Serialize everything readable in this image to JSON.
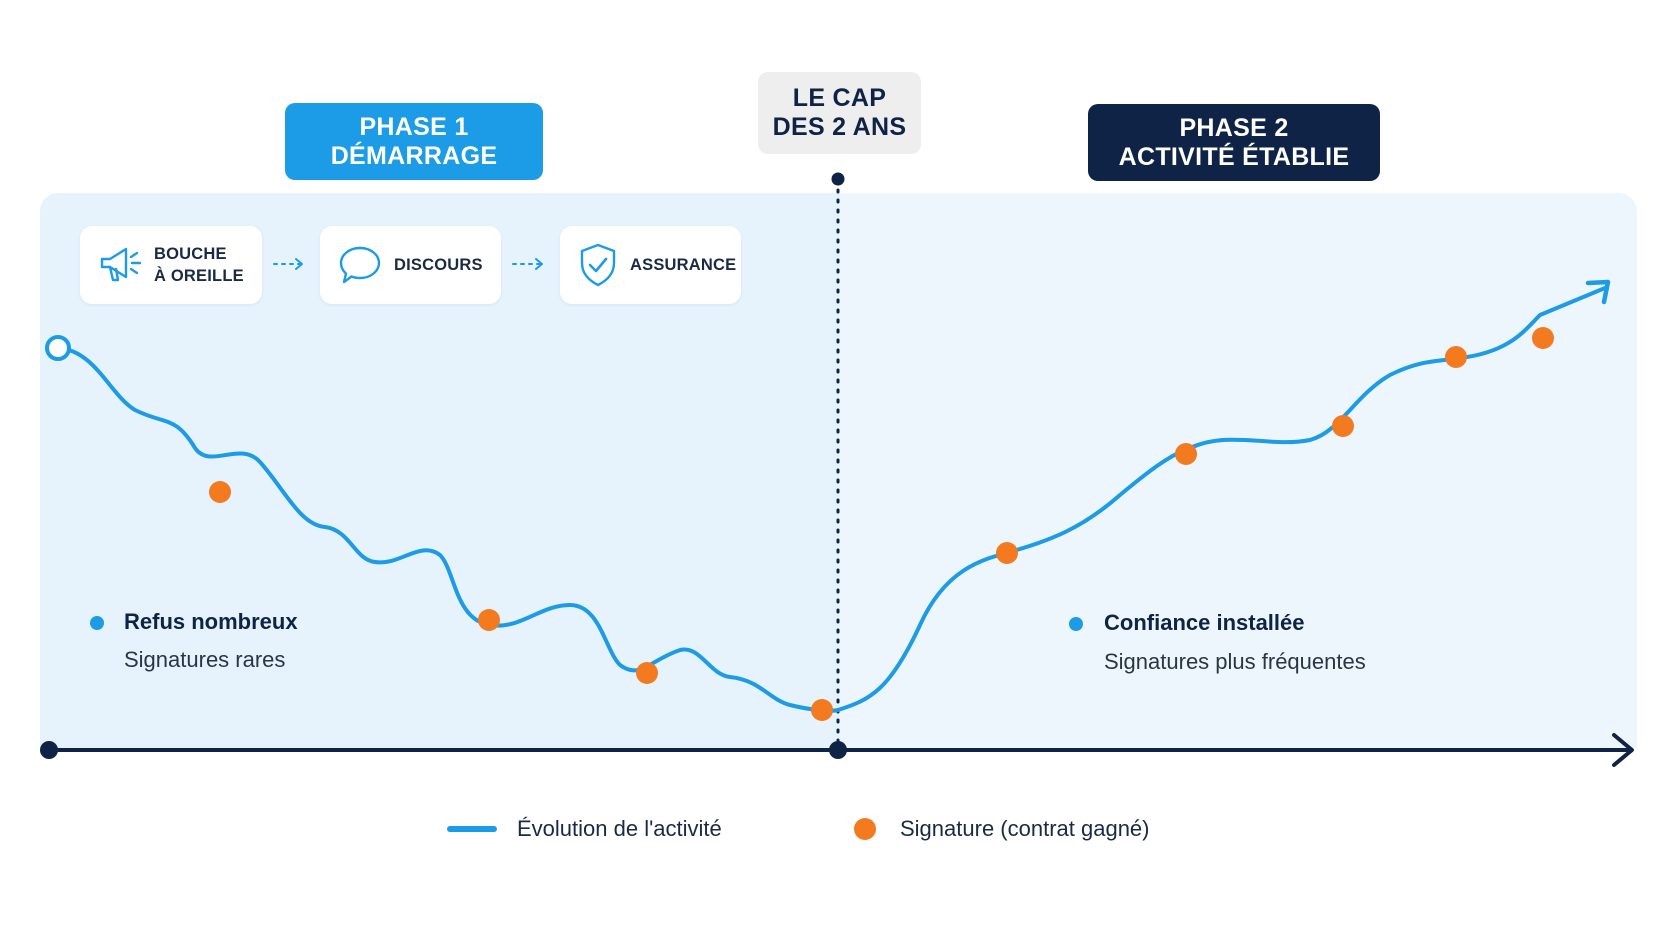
{
  "phase1": {
    "line1": "PHASE 1",
    "line2": "DÉMARRAGE"
  },
  "cap": {
    "line1": "LE CAP",
    "line2": "DES 2 ANS"
  },
  "phase2": {
    "line1": "PHASE 2",
    "line2": "ACTIVITÉ ÉTABLIE"
  },
  "steps": [
    {
      "line1": "BOUCHE",
      "line2": "À OREILLE",
      "icon": "megaphone-icon"
    },
    {
      "line1": "DISCOURS",
      "icon": "speech-bubble-icon"
    },
    {
      "line1": "ASSURANCE",
      "icon": "shield-check-icon"
    }
  ],
  "left_note": {
    "title": "Refus nombreux",
    "subtitle": "Signatures rares"
  },
  "right_note": {
    "title": "Confiance installée",
    "subtitle": "Signatures plus fréquentes"
  },
  "legend": {
    "line_label": "Évolution de l'activité",
    "dot_label": "Signature (contrat gagné)"
  },
  "colors": {
    "line": "#1c9be6",
    "signature": "#f47a20",
    "axis": "#0f2347",
    "phase1": "#1c9be6",
    "phase2": "#0f2347"
  },
  "chart_data": {
    "type": "line",
    "x_unit": "normalized time (1 = 2-year mark)",
    "series": [
      {
        "name": "Évolution de l'activité",
        "points": [
          [
            0.0,
            1.0
          ],
          [
            0.08,
            0.91
          ],
          [
            0.18,
            0.62
          ],
          [
            0.22,
            0.55
          ],
          [
            0.32,
            0.44
          ],
          [
            0.45,
            0.36
          ],
          [
            0.55,
            0.28
          ],
          [
            0.65,
            0.23
          ],
          [
            0.75,
            0.17
          ],
          [
            0.85,
            0.12
          ],
          [
            0.92,
            0.08
          ],
          [
            1.0,
            0.05
          ],
          [
            1.15,
            0.33
          ],
          [
            1.3,
            0.45
          ],
          [
            1.45,
            0.72
          ],
          [
            1.65,
            0.83
          ],
          [
            1.8,
            0.92
          ],
          [
            2.0,
            1.07
          ]
        ]
      }
    ],
    "signatures": [
      [
        0.22,
        0.55
      ],
      [
        0.56,
        0.28
      ],
      [
        0.76,
        0.17
      ],
      [
        0.98,
        0.05
      ],
      [
        1.22,
        0.38
      ],
      [
        1.46,
        0.72
      ],
      [
        1.65,
        0.83
      ],
      [
        1.81,
        0.92
      ],
      [
        1.92,
        0.94
      ]
    ]
  }
}
